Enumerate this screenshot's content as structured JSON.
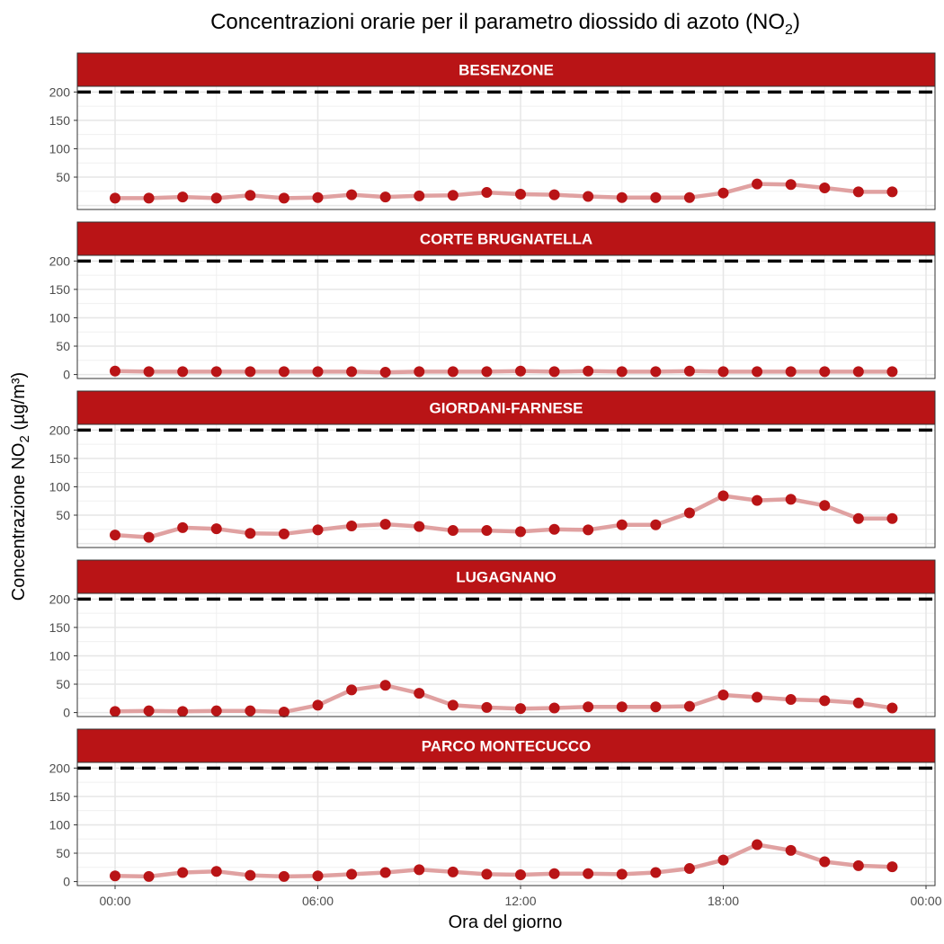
{
  "chart_data": {
    "type": "line",
    "title": {
      "main": "Concentrazioni orarie per il parametro diossido di azoto (NO",
      "sub": "2",
      "end": ")"
    },
    "xlabel": "Ora del giorno",
    "ylabel": {
      "main": "Concentrazione NO",
      "sub": "2",
      "end": " (µg/m³)"
    },
    "x_ticks": [
      "00:00",
      "06:00",
      "12:00",
      "18:00",
      "00:00"
    ],
    "y_ticks": [
      0,
      50,
      100,
      150,
      200
    ],
    "ylim": [
      0,
      200
    ],
    "threshold": 200,
    "x_hours": [
      0,
      1,
      2,
      3,
      4,
      5,
      6,
      7,
      8,
      9,
      10,
      11,
      12,
      13,
      14,
      15,
      16,
      17,
      18,
      19,
      20,
      21,
      22,
      23
    ],
    "xlim": [
      0,
      24
    ],
    "colors": {
      "strip": "#b91416",
      "line": "#e0a1a1",
      "point": "#b91416",
      "threshold": "#000000"
    },
    "series": [
      {
        "name": "BESENZONE",
        "y_ticks": [
          50,
          100,
          150,
          200
        ],
        "values": [
          13,
          13,
          15,
          13,
          18,
          13,
          14,
          19,
          15,
          17,
          18,
          23,
          20,
          19,
          16,
          14,
          14,
          14,
          22,
          38,
          37,
          31,
          24,
          24
        ]
      },
      {
        "name": "CORTE BRUGNATELLA",
        "y_ticks": [
          0,
          50,
          100,
          150,
          200
        ],
        "values": [
          6,
          5,
          5,
          5,
          5,
          5,
          5,
          5,
          4,
          5,
          5,
          5,
          6,
          5,
          6,
          5,
          5,
          6,
          5,
          5,
          5,
          5,
          5,
          5
        ]
      },
      {
        "name": "GIORDANI-FARNESE",
        "y_ticks": [
          50,
          100,
          150,
          200
        ],
        "values": [
          15,
          11,
          28,
          26,
          18,
          17,
          24,
          31,
          34,
          30,
          23,
          23,
          21,
          25,
          24,
          33,
          33,
          54,
          84,
          76,
          78,
          67,
          44,
          44
        ]
      },
      {
        "name": "LUGAGNANO",
        "y_ticks": [
          0,
          50,
          100,
          150,
          200
        ],
        "values": [
          2,
          3,
          2,
          3,
          3,
          1,
          13,
          40,
          48,
          34,
          13,
          9,
          7,
          8,
          10,
          10,
          10,
          11,
          31,
          27,
          23,
          21,
          17,
          8
        ]
      },
      {
        "name": "PARCO MONTECUCCO",
        "y_ticks": [
          0,
          50,
          100,
          150,
          200
        ],
        "values": [
          10,
          9,
          16,
          18,
          11,
          9,
          10,
          13,
          16,
          21,
          17,
          13,
          12,
          14,
          14,
          13,
          16,
          23,
          38,
          65,
          55,
          35,
          28,
          26
        ]
      }
    ]
  }
}
